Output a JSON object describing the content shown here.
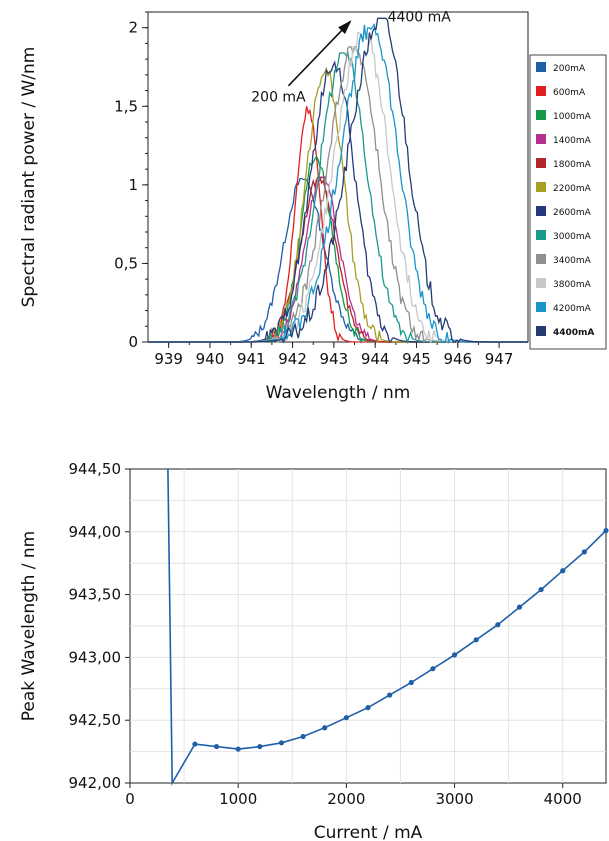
{
  "chart_data": [
    {
      "type": "line",
      "title": "",
      "xlabel": "Wavelength / nm",
      "ylabel": "Spectral radiant power / W/nm",
      "xlim": [
        938.5,
        947.7
      ],
      "ylim": [
        0,
        2.1
      ],
      "xticks": [
        939,
        940,
        941,
        942,
        943,
        944,
        945,
        946,
        947
      ],
      "xtick_labels": [
        "939",
        "940",
        "941",
        "942",
        "943",
        "944",
        "945",
        "946",
        "947"
      ],
      "yticks": [
        0,
        0.5,
        1,
        1.5,
        2
      ],
      "ytick_labels": [
        "0",
        "0,5",
        "1",
        "1,5",
        "2"
      ],
      "legend": "right",
      "annotations": [
        {
          "text": "200 mA",
          "x": 941.0,
          "y": 1.53
        },
        {
          "text": "4400 mA",
          "x": 944.3,
          "y": 2.04
        }
      ],
      "arrow": {
        "from": [
          941.9,
          1.63
        ],
        "to": [
          943.4,
          2.04
        ]
      },
      "series": [
        {
          "name": "200mA",
          "color": "#1f5fa8",
          "peak": 942.25,
          "height": 1.04,
          "wl": 0.45,
          "wr": 0.5
        },
        {
          "name": "600mA",
          "color": "#e02020",
          "peak": 942.38,
          "height": 1.5,
          "wl": 0.3,
          "wr": 0.28
        },
        {
          "name": "1000mA",
          "color": "#139a49",
          "peak": 942.55,
          "height": 1.18,
          "wl": 0.36,
          "wr": 0.4
        },
        {
          "name": "1400mA",
          "color": "#b6308f",
          "peak": 942.7,
          "height": 1.05,
          "wl": 0.4,
          "wr": 0.42
        },
        {
          "name": "1800mA",
          "color": "#b3262a",
          "peak": 942.65,
          "height": 1.05,
          "wl": 0.45,
          "wr": 0.4
        },
        {
          "name": "2200mA",
          "color": "#a79e24",
          "peak": 942.78,
          "height": 1.74,
          "wl": 0.45,
          "wr": 0.45
        },
        {
          "name": "2600mA",
          "color": "#27397e",
          "peak": 943.0,
          "height": 1.78,
          "wl": 0.55,
          "wr": 0.5
        },
        {
          "name": "3000mA",
          "color": "#1a9a8b",
          "peak": 943.25,
          "height": 1.84,
          "wl": 0.6,
          "wr": 0.55
        },
        {
          "name": "3400mA",
          "color": "#8f8f8f",
          "peak": 943.5,
          "height": 1.88,
          "wl": 0.65,
          "wr": 0.58
        },
        {
          "name": "3800mA",
          "color": "#c8c8c8",
          "peak": 943.72,
          "height": 1.97,
          "wl": 0.7,
          "wr": 0.6
        },
        {
          "name": "4200mA",
          "color": "#1b95c9",
          "peak": 943.92,
          "height": 2.02,
          "wl": 0.75,
          "wr": 0.62
        },
        {
          "name": "4400mA",
          "color": "#243c72",
          "peak": 944.15,
          "height": 2.06,
          "wl": 0.78,
          "wr": 0.62
        }
      ]
    },
    {
      "type": "line",
      "title": "",
      "xlabel": "Current / mA",
      "ylabel": "Peak Wavelength / nm",
      "xlim": [
        0,
        4400
      ],
      "ylim": [
        942.0,
        944.5
      ],
      "xticks": [
        0,
        1000,
        2000,
        3000,
        4000
      ],
      "xtick_labels": [
        "0",
        "1000",
        "2000",
        "3000",
        "4000"
      ],
      "yticks": [
        942.0,
        942.5,
        943.0,
        943.5,
        944.0,
        944.5
      ],
      "ytick_labels": [
        "942,00",
        "942,50",
        "943,00",
        "943,50",
        "944,00",
        "944,50"
      ],
      "grid": true,
      "color": "#1f5fa8",
      "points": [
        {
          "x": 350,
          "y": 944.5
        },
        {
          "x": 390,
          "y": 942.0
        },
        {
          "x": 600,
          "y": 942.31
        },
        {
          "x": 800,
          "y": 942.29
        },
        {
          "x": 1000,
          "y": 942.27
        },
        {
          "x": 1200,
          "y": 942.29
        },
        {
          "x": 1400,
          "y": 942.32
        },
        {
          "x": 1600,
          "y": 942.37
        },
        {
          "x": 1800,
          "y": 942.44
        },
        {
          "x": 2000,
          "y": 942.52
        },
        {
          "x": 2200,
          "y": 942.6
        },
        {
          "x": 2400,
          "y": 942.7
        },
        {
          "x": 2600,
          "y": 942.8
        },
        {
          "x": 2800,
          "y": 942.91
        },
        {
          "x": 3000,
          "y": 943.02
        },
        {
          "x": 3200,
          "y": 943.14
        },
        {
          "x": 3400,
          "y": 943.26
        },
        {
          "x": 3600,
          "y": 943.4
        },
        {
          "x": 3800,
          "y": 943.54
        },
        {
          "x": 4000,
          "y": 943.69
        },
        {
          "x": 4200,
          "y": 943.84
        },
        {
          "x": 4400,
          "y": 944.01
        }
      ]
    }
  ]
}
